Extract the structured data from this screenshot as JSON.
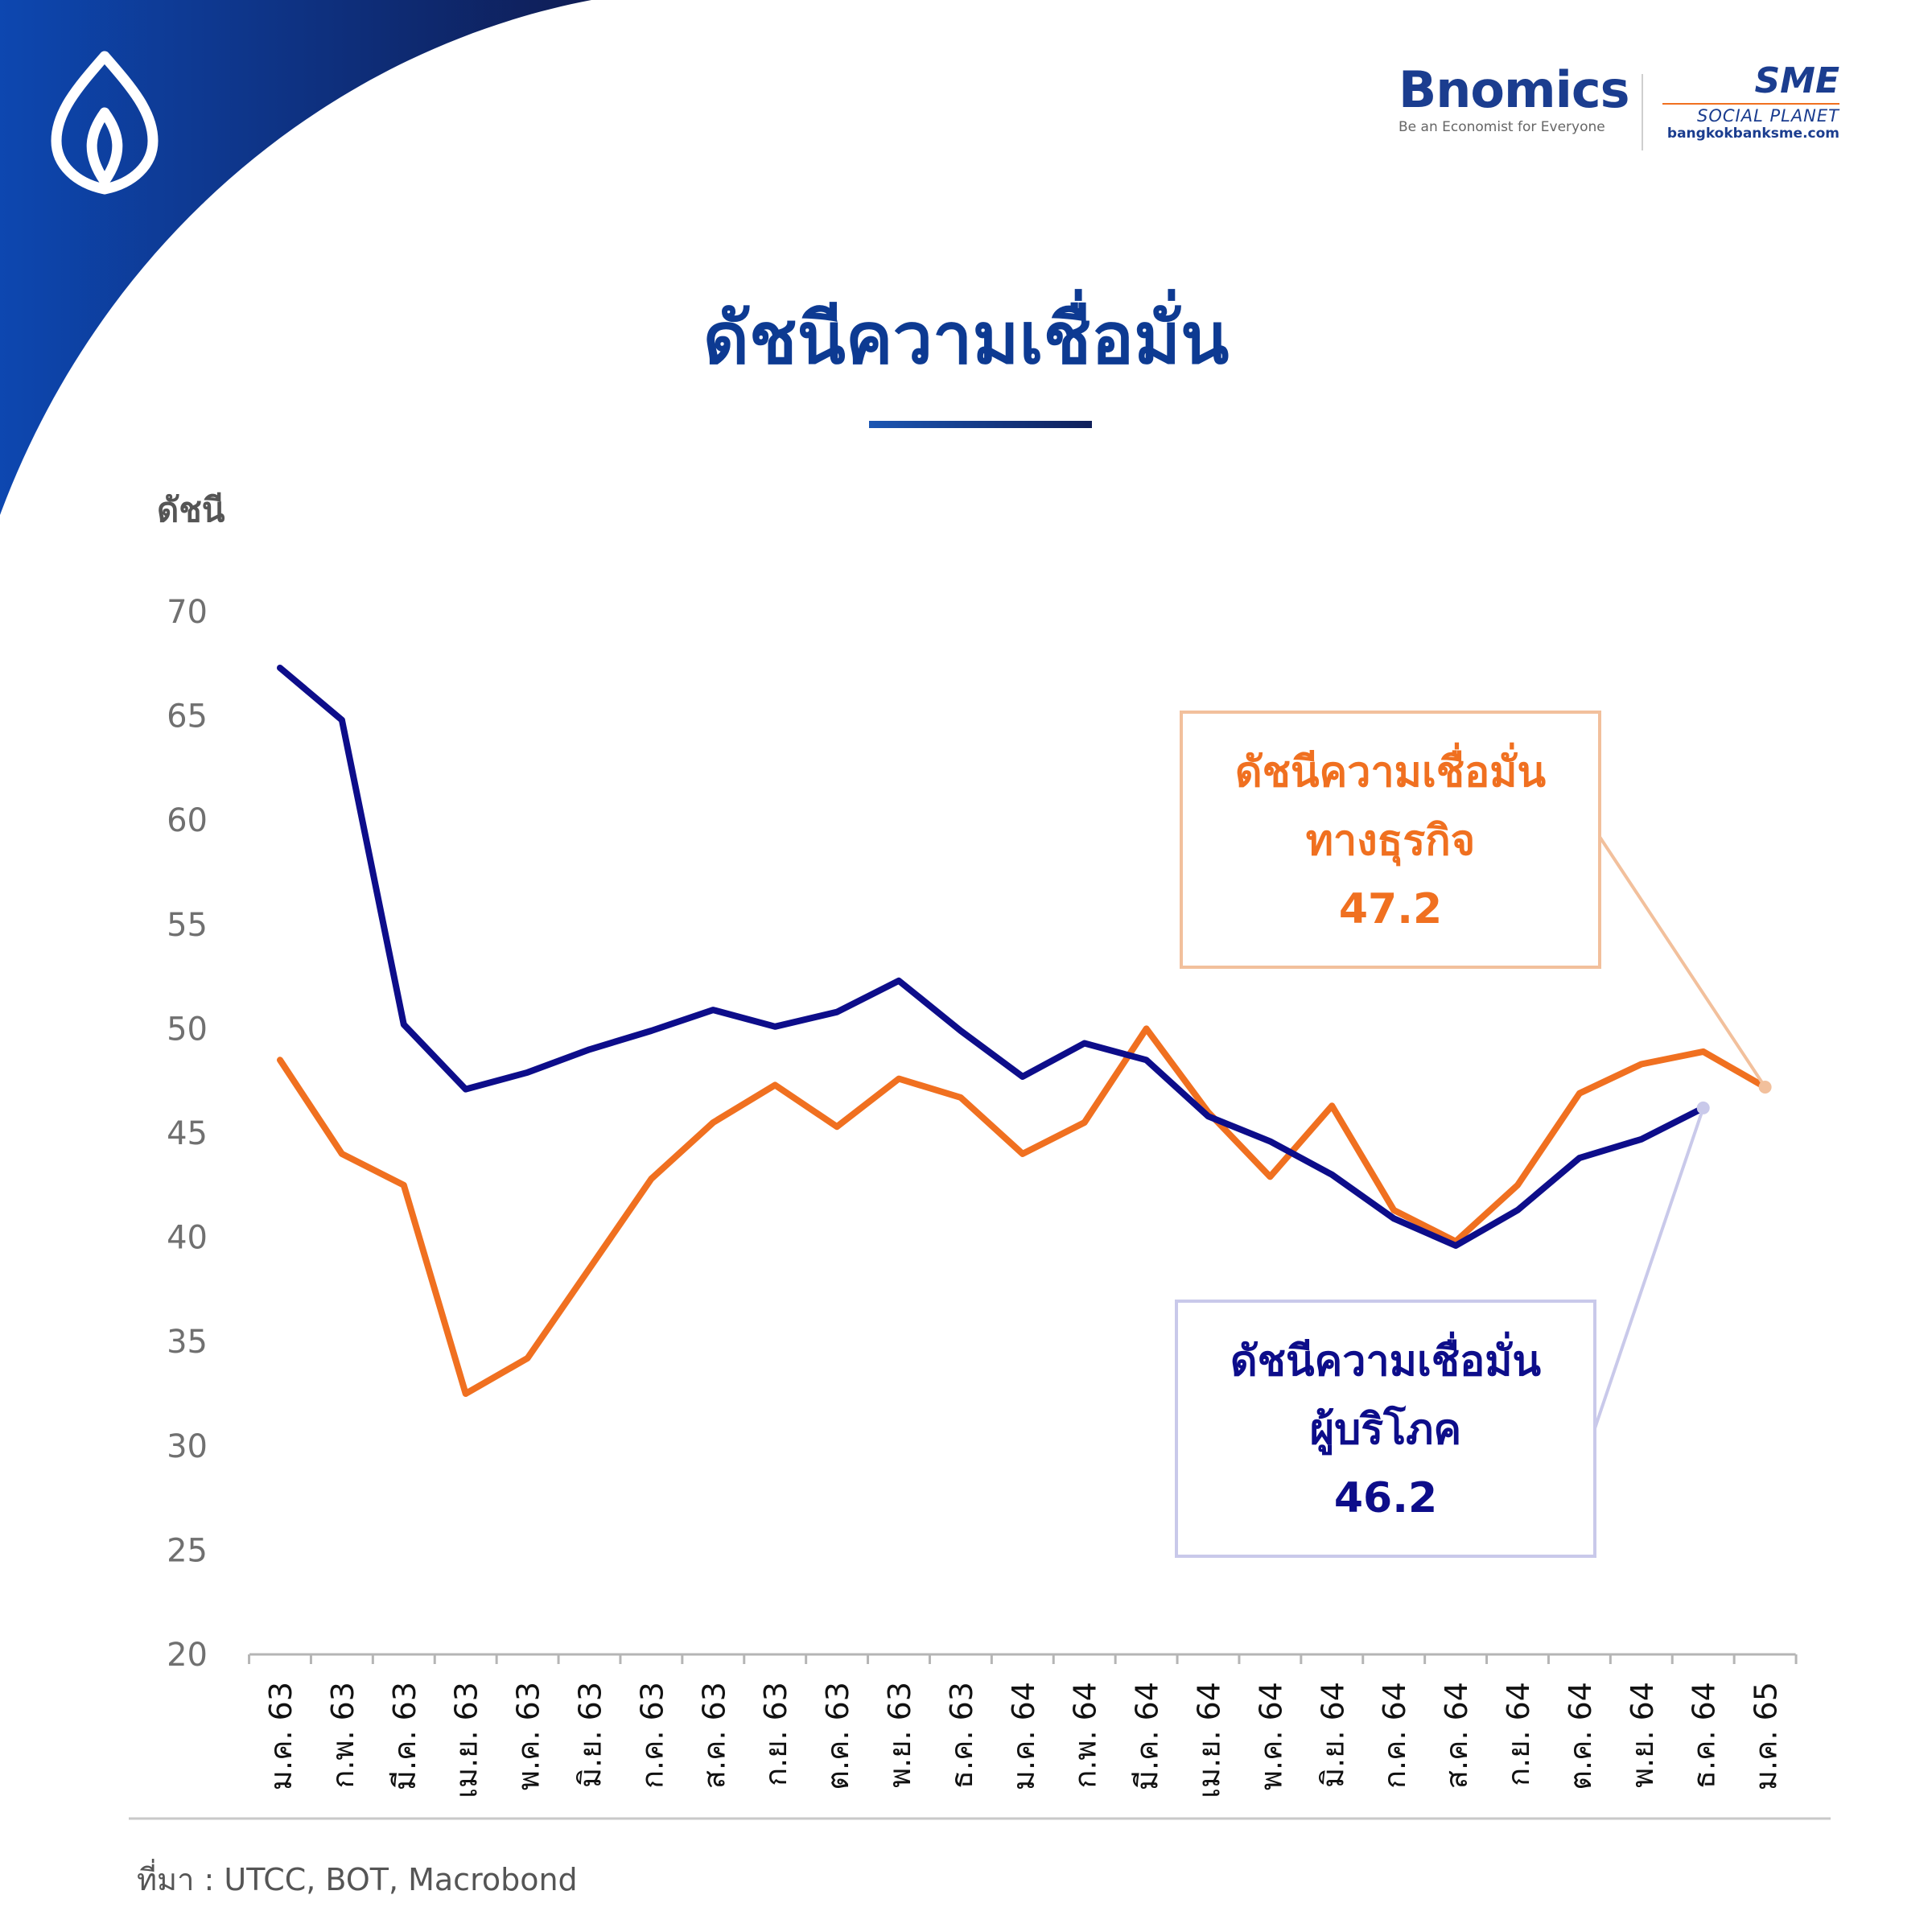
{
  "title": "ดัชนีความเชื่อมั่น",
  "brand": {
    "bnomics_logo": "Bnomics",
    "bnomics_tagline": "Be an Economist for Everyone",
    "sme_logo": "SME",
    "sme_subtitle": "SOCIAL PLANET",
    "sme_url": "bangkokbanksme.com"
  },
  "source": "ที่มา : UTCC, BOT, Macrobond",
  "colors": {
    "business": "#f07020",
    "consumer": "#0d0d8a",
    "accent": "#0d3a92"
  },
  "icons": {
    "corner_logo": "bangkok-bank-lotus-icon"
  },
  "chart_data": {
    "type": "line",
    "ylabel": "ดัชนี",
    "xlabel": "",
    "ylim": [
      20,
      70
    ],
    "yticks": [
      20,
      25,
      30,
      35,
      40,
      45,
      50,
      55,
      60,
      65,
      70
    ],
    "categories": [
      "ม.ค. 63",
      "ก.พ. 63",
      "มี.ค. 63",
      "เม.ย. 63",
      "พ.ค. 63",
      "มิ.ย. 63",
      "ก.ค. 63",
      "ส.ค. 63",
      "ก.ย. 63",
      "ต.ค. 63",
      "พ.ย. 63",
      "ธ.ค. 63",
      "ม.ค. 64",
      "ก.พ. 64",
      "มี.ค. 64",
      "เม.ย. 64",
      "พ.ค. 64",
      "มิ.ย. 64",
      "ก.ค. 64",
      "ส.ค. 64",
      "ก.ย. 64",
      "ต.ค. 64",
      "พ.ย. 64",
      "ธ.ค. 64",
      "ม.ค. 65"
    ],
    "grid": false,
    "series": [
      {
        "key": "business",
        "values": [
          48.5,
          44.0,
          42.5,
          32.5,
          34.2,
          38.5,
          42.8,
          45.5,
          47.3,
          45.3,
          47.6,
          46.7,
          44.0,
          45.5,
          50.0,
          46.0,
          42.9,
          46.3,
          41.3,
          39.8,
          42.5,
          46.9,
          48.3,
          48.9,
          47.2
        ]
      },
      {
        "key": "consumer",
        "values": [
          67.3,
          64.8,
          50.2,
          47.1,
          47.9,
          49.0,
          49.9,
          50.9,
          50.1,
          50.8,
          52.3,
          49.9,
          47.7,
          49.3,
          48.5,
          45.8,
          44.6,
          43.0,
          40.9,
          39.6,
          41.3,
          43.8,
          44.7,
          46.2,
          null
        ]
      }
    ],
    "annotations": [
      {
        "series": "business",
        "lines": [
          "ดัชนีความเชื่อมั่น",
          "ทางธุรกิจ"
        ],
        "value": "47.2",
        "point_index": 24
      },
      {
        "series": "consumer",
        "lines": [
          "ดัชนีความเชื่อมั่น",
          "ผู้บริโภค"
        ],
        "value": "46.2",
        "point_index": 23
      }
    ]
  }
}
